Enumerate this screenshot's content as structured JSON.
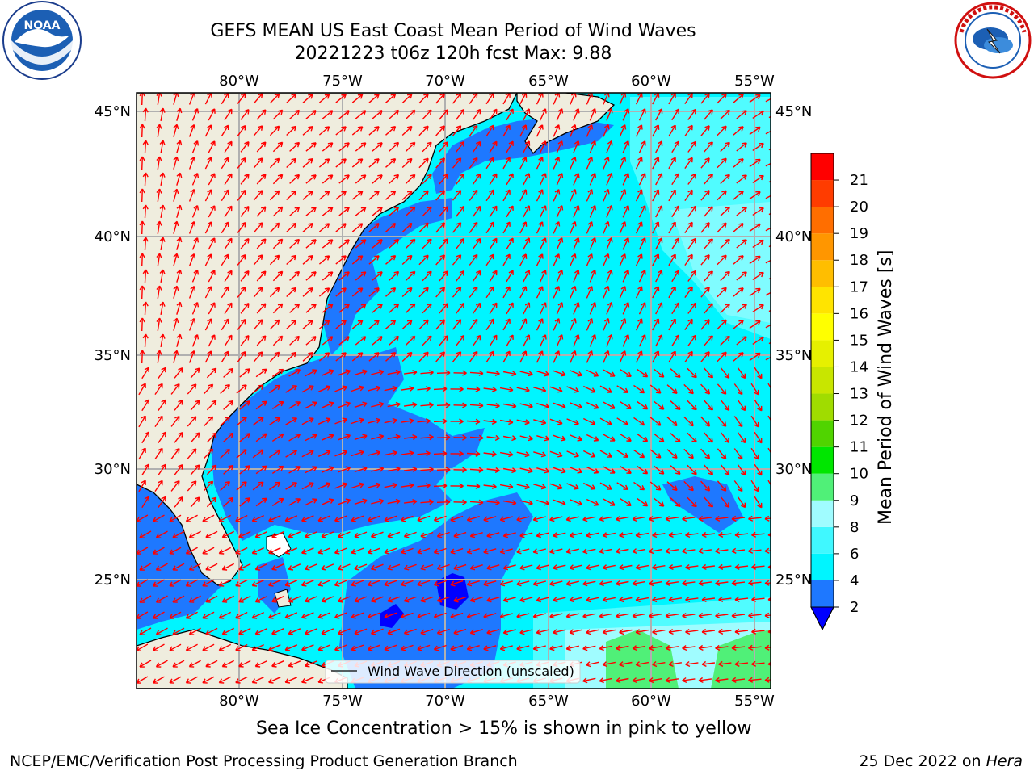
{
  "header": {
    "title": "GEFS MEAN US East Coast Mean Period of Wind Waves",
    "subtitle": "20221223 t06z 120h fcst   Max: 9.88"
  },
  "logos": {
    "left": "noaa-logo",
    "left_text": "NOAA",
    "left_ring_text": "NATIONAL OCEANIC AND ATMOSPHERIC ADMINISTRATION · U.S. DEPARTMENT OF COMMERCE",
    "right": "nws-logo",
    "right_ring_text": "NATIONAL WEATHER SERVICE"
  },
  "map": {
    "longitude_labels": [
      "80°W",
      "75°W",
      "70°W",
      "65°W",
      "60°W",
      "55°W"
    ],
    "latitude_labels": [
      "45°N",
      "40°N",
      "35°N",
      "30°N",
      "25°N"
    ],
    "legend_label": "Wind Wave Direction (unscaled)",
    "colors": {
      "land": "#efedde",
      "coast": "#000000",
      "grid": "#b0b0b0",
      "arrow": "#ff0000",
      "dark_blue": "#0000ff",
      "blue": "#1e78ff",
      "cyan": "#00f5ff",
      "light_cyan": "#50fcff",
      "pale_cyan": "#a0fcff",
      "green": "#50f078"
    }
  },
  "colorbar": {
    "label": "Mean Period of Wind Waves [s]",
    "ticks": [
      "2",
      "4",
      "6",
      "7",
      "8",
      "9",
      "10",
      "11",
      "12",
      "13",
      "14",
      "15",
      "16",
      "17",
      "18",
      "19",
      "20",
      "21"
    ],
    "tick_labels": [
      "2",
      "4",
      "6",
      "8",
      "9",
      "10",
      "11",
      "12",
      "13",
      "14",
      "15",
      "16",
      "17",
      "18",
      "19",
      "20",
      "21"
    ],
    "colors": [
      "#1e78ff",
      "#00f5ff",
      "#40f8ff",
      "#a0fcff",
      "#50f078",
      "#00e600",
      "#50d400",
      "#a0dc00",
      "#c8e600",
      "#e6f000",
      "#ffff00",
      "#ffe400",
      "#ffbe00",
      "#ff9600",
      "#ff6e00",
      "#ff3c00",
      "#ff0000"
    ],
    "under_color": "#0000ff"
  },
  "notes": {
    "sea_ice": "Sea Ice Concentration > 15% is shown in pink to yellow"
  },
  "footer": {
    "left": "NCEP/EMC/Verification Post Processing Product Generation Branch",
    "right_date": "25 Dec 2022 on",
    "right_host": "Hera"
  }
}
